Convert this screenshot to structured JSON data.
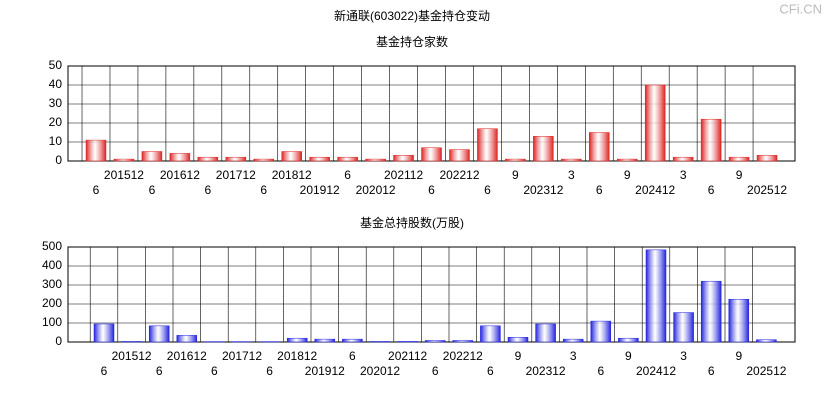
{
  "title": "新通联(603022)基金持仓变动",
  "watermark": "CFi.CN",
  "chart_data": [
    {
      "type": "bar",
      "title": "基金持仓家数",
      "color": "#dd2222",
      "categories": [
        "6",
        "201512",
        "6",
        "201612",
        "6",
        "201712",
        "6",
        "201812",
        "201912",
        "6",
        "202012",
        "202112",
        "6",
        "202212",
        "6",
        "9",
        "202312",
        "3",
        "6",
        "9",
        "202412",
        "3",
        "6",
        "9",
        "202512"
      ],
      "values": [
        11,
        1,
        5,
        4,
        2,
        2,
        1,
        5,
        2,
        2,
        1,
        3,
        7,
        6,
        17,
        1,
        13,
        1,
        15,
        1,
        40,
        2,
        22,
        2,
        3
      ],
      "ylim": [
        0,
        50
      ],
      "yticks": [
        0,
        10,
        20,
        30,
        40,
        50
      ],
      "grid": true
    },
    {
      "type": "bar",
      "title": "基金总持股数(万股)",
      "color": "#2222dd",
      "categories": [
        "6",
        "201512",
        "6",
        "201612",
        "6",
        "201712",
        "6",
        "201812",
        "201912",
        "6",
        "202012",
        "202112",
        "6",
        "202212",
        "6",
        "9",
        "202312",
        "3",
        "6",
        "9",
        "202412",
        "3",
        "6",
        "9",
        "202512"
      ],
      "values": [
        95,
        3,
        85,
        35,
        2,
        2,
        2,
        20,
        15,
        15,
        3,
        3,
        8,
        8,
        85,
        25,
        95,
        15,
        110,
        20,
        485,
        155,
        320,
        225,
        12
      ],
      "ylim": [
        0,
        500
      ],
      "yticks": [
        0,
        100,
        200,
        300,
        400,
        500
      ],
      "grid": true
    }
  ]
}
